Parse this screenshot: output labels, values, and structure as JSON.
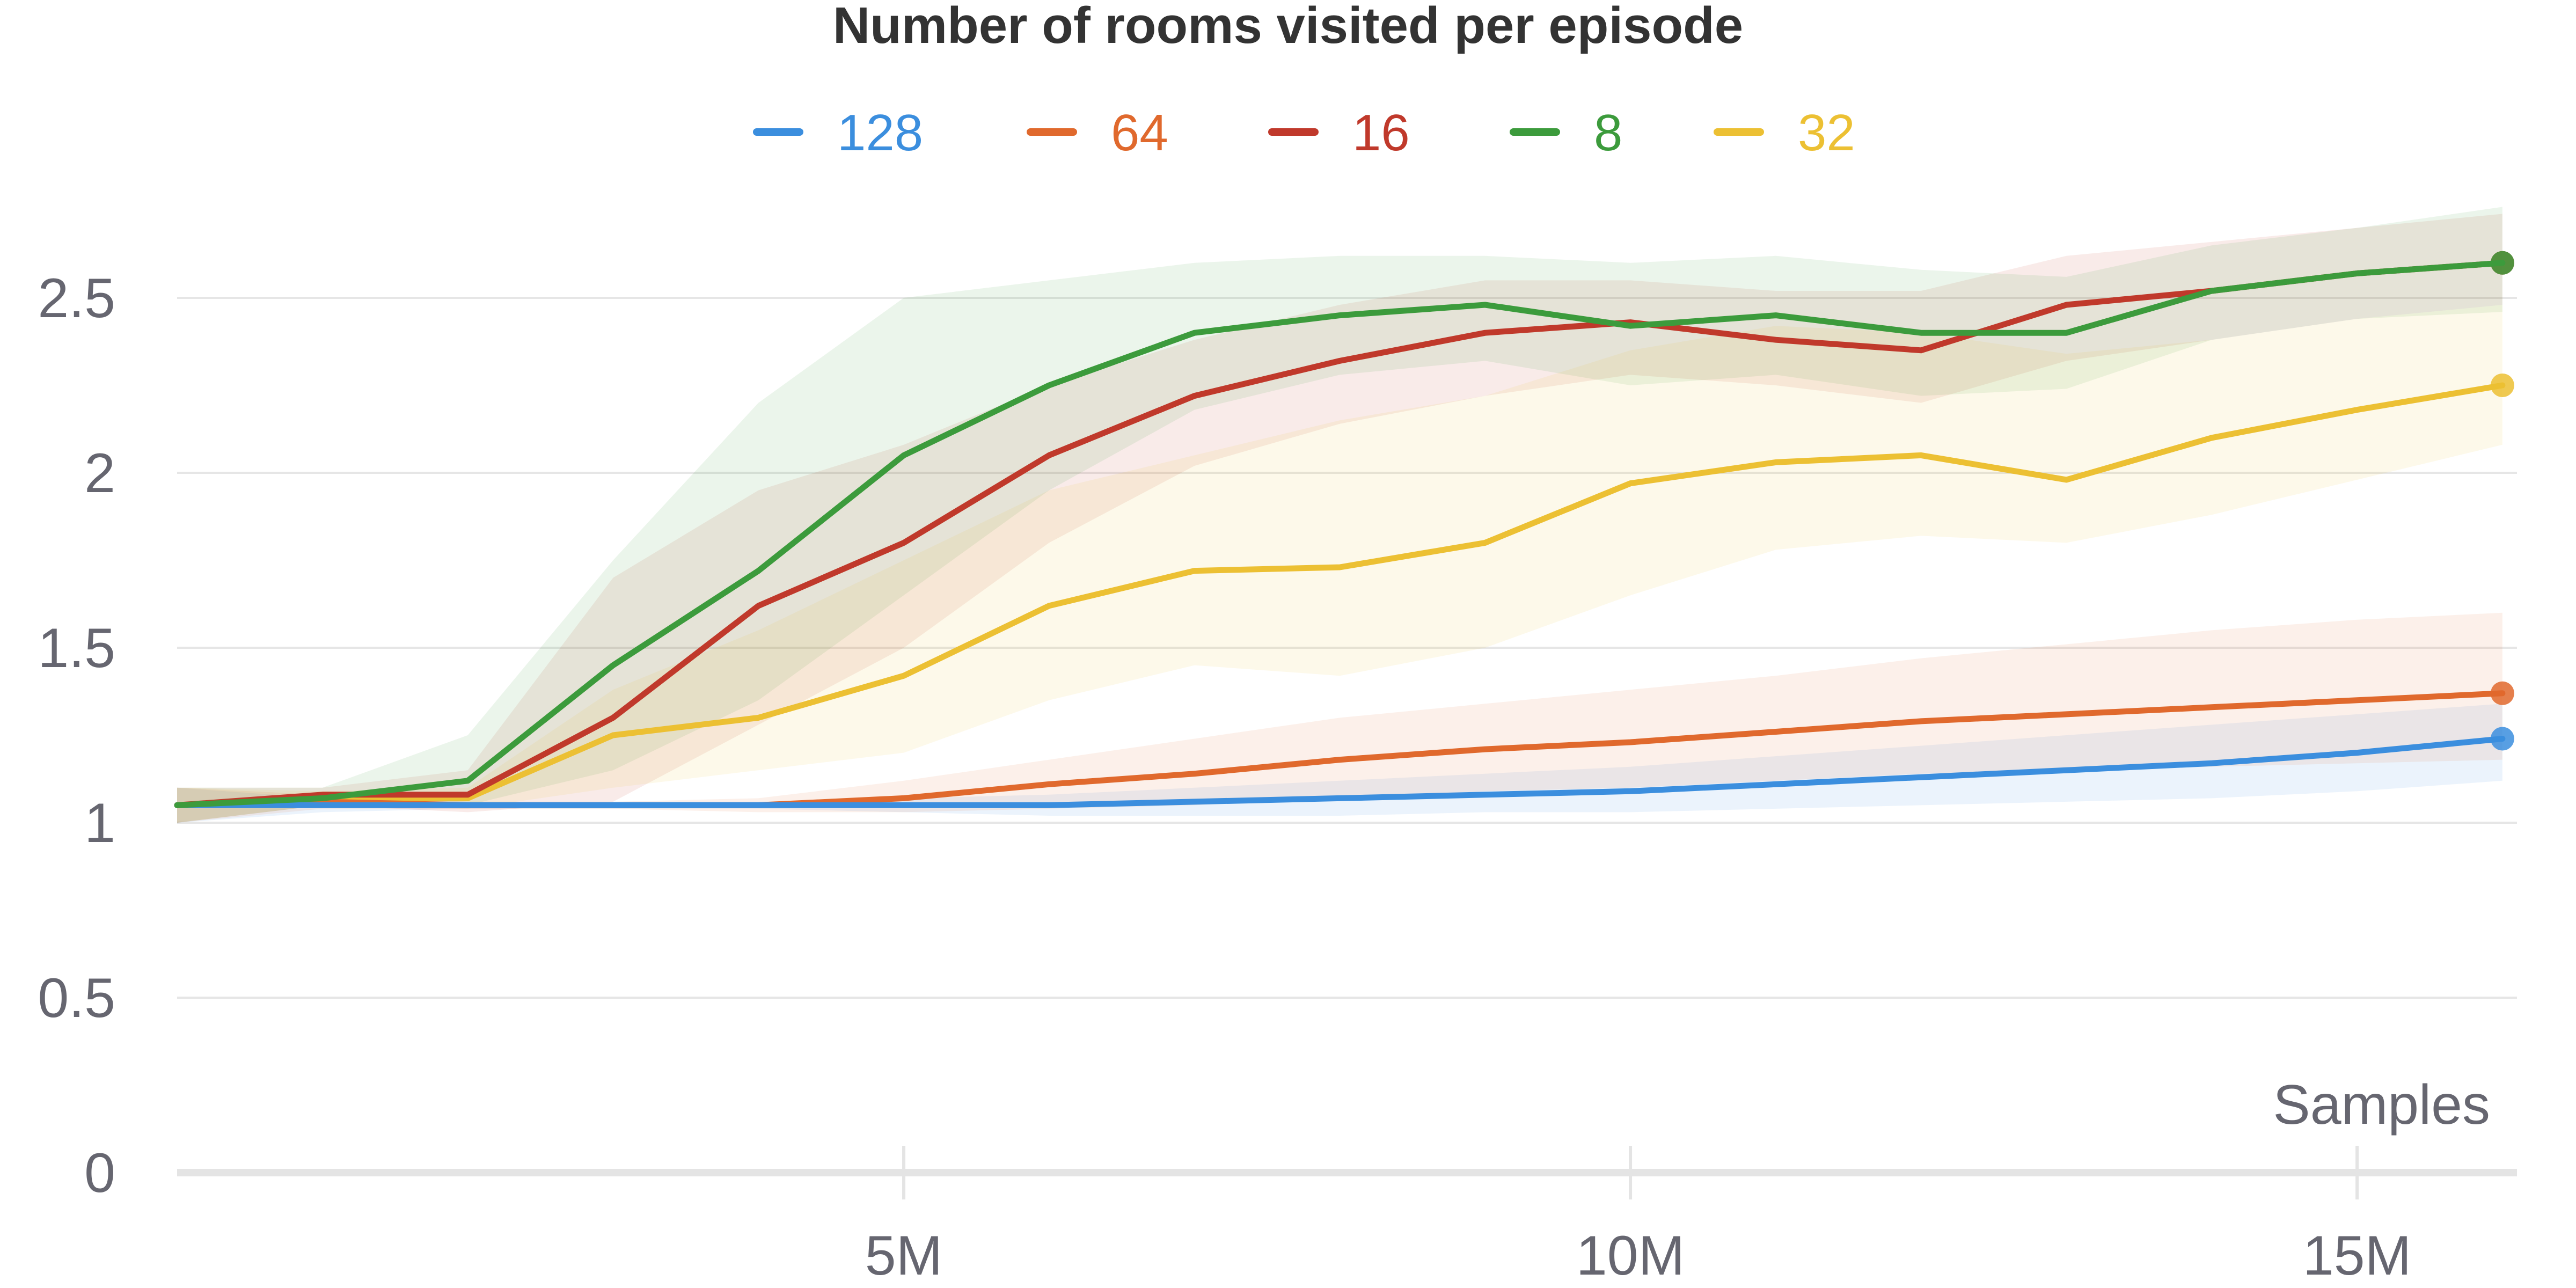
{
  "chart_data": {
    "type": "line",
    "title": "Number of rooms visited per episode",
    "xlabel": "Samples",
    "ylabel": "",
    "xlim": [
      0,
      16100000
    ],
    "ylim": [
      0,
      2.7
    ],
    "x_ticks": [
      {
        "value": 5000000,
        "label": "5M"
      },
      {
        "value": 10000000,
        "label": "10M"
      },
      {
        "value": 15000000,
        "label": "15M"
      }
    ],
    "y_ticks": [
      {
        "value": 0,
        "label": "0"
      },
      {
        "value": 0.5,
        "label": "0.5"
      },
      {
        "value": 1,
        "label": "1"
      },
      {
        "value": 1.5,
        "label": "1.5"
      },
      {
        "value": 2,
        "label": "2"
      },
      {
        "value": 2.5,
        "label": "2.5"
      }
    ],
    "grid": true,
    "legend_position": "top-center",
    "x": [
      0,
      1000000,
      2000000,
      3000000,
      4000000,
      5000000,
      6000000,
      7000000,
      8000000,
      9000000,
      10000000,
      11000000,
      12000000,
      13000000,
      14000000,
      15000000,
      16000000
    ],
    "series": [
      {
        "name": "128",
        "color": "#3b8ede",
        "values": [
          1.05,
          1.05,
          1.05,
          1.05,
          1.05,
          1.05,
          1.05,
          1.06,
          1.07,
          1.08,
          1.09,
          1.11,
          1.13,
          1.15,
          1.17,
          1.2,
          1.24
        ],
        "upper": [
          1.1,
          1.07,
          1.06,
          1.06,
          1.06,
          1.07,
          1.08,
          1.1,
          1.12,
          1.14,
          1.16,
          1.19,
          1.22,
          1.25,
          1.28,
          1.31,
          1.34
        ],
        "lower": [
          1.0,
          1.03,
          1.04,
          1.04,
          1.04,
          1.03,
          1.02,
          1.02,
          1.02,
          1.03,
          1.03,
          1.04,
          1.05,
          1.06,
          1.07,
          1.09,
          1.12
        ]
      },
      {
        "name": "64",
        "color": "#e0692d",
        "values": [
          1.05,
          1.06,
          1.05,
          1.05,
          1.05,
          1.07,
          1.11,
          1.14,
          1.18,
          1.21,
          1.23,
          1.26,
          1.29,
          1.31,
          1.33,
          1.35,
          1.37
        ],
        "upper": [
          1.1,
          1.08,
          1.06,
          1.06,
          1.07,
          1.12,
          1.18,
          1.24,
          1.3,
          1.34,
          1.38,
          1.42,
          1.47,
          1.51,
          1.55,
          1.58,
          1.6
        ],
        "lower": [
          1.0,
          1.04,
          1.04,
          1.04,
          1.03,
          1.03,
          1.04,
          1.05,
          1.07,
          1.09,
          1.1,
          1.12,
          1.14,
          1.15,
          1.16,
          1.17,
          1.18
        ]
      },
      {
        "name": "16",
        "color": "#c0392b",
        "values": [
          1.05,
          1.08,
          1.08,
          1.3,
          1.62,
          1.8,
          2.05,
          2.22,
          2.32,
          2.4,
          2.43,
          2.38,
          2.35,
          2.48,
          2.52,
          2.57,
          2.6
        ],
        "upper": [
          1.1,
          1.1,
          1.15,
          1.7,
          1.95,
          2.08,
          2.25,
          2.38,
          2.48,
          2.55,
          2.55,
          2.52,
          2.52,
          2.62,
          2.66,
          2.7,
          2.74
        ],
        "lower": [
          1.0,
          1.05,
          1.03,
          1.06,
          1.28,
          1.5,
          1.8,
          2.02,
          2.14,
          2.22,
          2.28,
          2.25,
          2.2,
          2.32,
          2.38,
          2.44,
          2.48
        ]
      },
      {
        "name": "8",
        "color": "#3c9b3c",
        "values": [
          1.05,
          1.07,
          1.12,
          1.45,
          1.72,
          2.05,
          2.25,
          2.4,
          2.45,
          2.48,
          2.42,
          2.45,
          2.4,
          2.4,
          2.52,
          2.57,
          2.6
        ],
        "upper": [
          1.1,
          1.1,
          1.25,
          1.75,
          2.2,
          2.5,
          2.55,
          2.6,
          2.62,
          2.62,
          2.6,
          2.62,
          2.58,
          2.56,
          2.65,
          2.7,
          2.76
        ],
        "lower": [
          1.0,
          1.05,
          1.05,
          1.15,
          1.35,
          1.65,
          1.95,
          2.18,
          2.28,
          2.32,
          2.25,
          2.28,
          2.22,
          2.24,
          2.38,
          2.44,
          2.46
        ]
      },
      {
        "name": "32",
        "color": "#ecc033",
        "values": [
          1.05,
          1.07,
          1.07,
          1.25,
          1.3,
          1.42,
          1.62,
          1.72,
          1.73,
          1.8,
          1.97,
          2.03,
          2.05,
          1.98,
          2.1,
          2.18,
          2.25
        ],
        "upper": [
          1.1,
          1.09,
          1.1,
          1.38,
          1.55,
          1.75,
          1.95,
          2.05,
          2.15,
          2.22,
          2.35,
          2.42,
          2.4,
          2.34,
          2.38,
          2.44,
          2.48
        ],
        "lower": [
          1.0,
          1.05,
          1.04,
          1.1,
          1.15,
          1.2,
          1.35,
          1.45,
          1.42,
          1.5,
          1.65,
          1.78,
          1.82,
          1.8,
          1.88,
          1.98,
          2.08
        ]
      }
    ]
  }
}
